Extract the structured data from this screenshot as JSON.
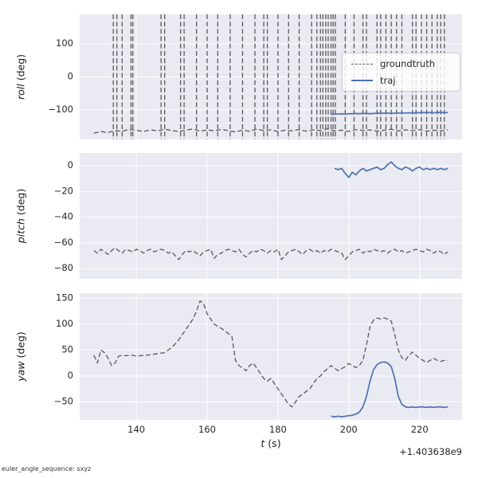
{
  "figure": {
    "background": "#ffffff",
    "axes_background": "#eaeaf2",
    "grid_color": "#ffffff",
    "tick_color": "#262626",
    "label_color": "#1a1a1a"
  },
  "footer": "euler_angle_sequence: sxyz",
  "legend": {
    "items": [
      {
        "label": "groundtruth",
        "style": "dashed",
        "color": "#595959"
      },
      {
        "label": "traj",
        "style": "solid",
        "color": "#4c72b0"
      }
    ]
  },
  "xaxis": {
    "label_var": "t",
    "label_unit": " (s)",
    "lim": [
      124,
      232
    ],
    "ticks": [
      140,
      160,
      180,
      200,
      220
    ],
    "offset_text": "+1.403638e9"
  },
  "chart_data": [
    {
      "type": "line",
      "ylabel_var": "roll",
      "ylabel_unit": " (deg)",
      "ylim": [
        -190,
        190
      ],
      "yticks": [
        -100,
        0,
        100
      ],
      "series": [
        {
          "name": "groundtruth",
          "style": "dashed",
          "color": "#595959",
          "t0": 128,
          "dt": 2,
          "values": [
            -171,
            -166,
            -169,
            -163,
            -165,
            -160,
            -162,
            -166,
            -161,
            -164,
            -159,
            -163,
            -166,
            -162,
            -158,
            -165,
            -161,
            -164,
            -160,
            -163,
            -167,
            -162,
            -165,
            -159,
            -163,
            -161,
            -166,
            -162,
            -164,
            -160,
            -165,
            -161,
            -163,
            -158,
            -164,
            -162,
            -166,
            -160,
            -163,
            -161,
            -165,
            -162,
            -159,
            -164,
            -161,
            -163,
            -160,
            -165,
            -162,
            -164,
            -161
          ],
          "wrap_lines_at": [
            133.5,
            134.5,
            136,
            138.5,
            139,
            147,
            148,
            152.5,
            153.5,
            157,
            160,
            163,
            166.5,
            170,
            173.5,
            176,
            177,
            180,
            183,
            186,
            189.5,
            191,
            192,
            192.7,
            193.5,
            194.2,
            195,
            195.6,
            196.2,
            199,
            201.5,
            204,
            205,
            208,
            209,
            210.5,
            212,
            213.5,
            215,
            218,
            219,
            220.5,
            222,
            223.5,
            225,
            226,
            227
          ]
        },
        {
          "name": "traj",
          "style": "solid",
          "color": "#4c72b0",
          "t0": 195,
          "dt": 1,
          "values": [
            -114,
            -113,
            -113,
            -112,
            -113,
            -112,
            -112,
            -111,
            -112,
            -111,
            -111,
            -112,
            -111,
            -110,
            -111,
            -110,
            -110,
            -111,
            -110,
            -110,
            -109,
            -110,
            -109,
            -110,
            -109,
            -109,
            -108,
            -109,
            -108,
            -109,
            -108,
            -108,
            -109,
            -108
          ]
        }
      ]
    },
    {
      "type": "line",
      "ylabel_var": "pitch",
      "ylabel_unit": " (deg)",
      "ylim": [
        -88,
        10
      ],
      "yticks": [
        -80,
        -60,
        -40,
        -20,
        0
      ],
      "series": [
        {
          "name": "groundtruth",
          "style": "dashed",
          "color": "#595959",
          "t0": 128,
          "dt": 1,
          "values": [
            -66,
            -68,
            -65,
            -67,
            -69,
            -66,
            -64,
            -66,
            -68,
            -65,
            -66,
            -67,
            -65,
            -66,
            -68,
            -66,
            -65,
            -67,
            -66,
            -65,
            -66,
            -68,
            -67,
            -70,
            -73,
            -69,
            -66,
            -67,
            -66,
            -68,
            -70,
            -67,
            -66,
            -65,
            -72,
            -69,
            -68,
            -66,
            -65,
            -66,
            -67,
            -65,
            -69,
            -71,
            -68,
            -66,
            -67,
            -65,
            -66,
            -68,
            -66,
            -67,
            -65,
            -73,
            -70,
            -67,
            -66,
            -65,
            -67,
            -69,
            -66,
            -65,
            -67,
            -66,
            -68,
            -66,
            -67,
            -65,
            -66,
            -67,
            -68,
            -73,
            -70,
            -67,
            -66,
            -65,
            -68,
            -66,
            -67,
            -65,
            -66,
            -67,
            -66,
            -68,
            -66,
            -65,
            -67,
            -66,
            -68,
            -67,
            -66,
            -65,
            -66,
            -67,
            -65,
            -66,
            -68,
            -66,
            -67,
            -69,
            -67
          ]
        },
        {
          "name": "traj",
          "style": "solid",
          "color": "#4c72b0",
          "t0": 196,
          "dt": 1,
          "values": [
            -2,
            -3,
            -2,
            -6,
            -9,
            -5,
            -7,
            -4,
            -2,
            -4,
            -3,
            -2,
            -1,
            -3,
            -2,
            1,
            3,
            0,
            -2,
            -3,
            -1,
            -2,
            -4,
            -2,
            -1,
            -3,
            -2,
            -3,
            -2,
            -3,
            -2,
            -3,
            -2
          ]
        }
      ]
    },
    {
      "type": "line",
      "ylabel_var": "yaw",
      "ylabel_unit": " (deg)",
      "ylim": [
        -85,
        160
      ],
      "yticks": [
        -50,
        0,
        50,
        100,
        150
      ],
      "series": [
        {
          "name": "groundtruth",
          "style": "dashed",
          "color": "#595959",
          "t0": 128,
          "dt": 1,
          "values": [
            40,
            25,
            50,
            45,
            35,
            20,
            25,
            38,
            40,
            39,
            40,
            40,
            38,
            39,
            40,
            40,
            41,
            42,
            43,
            44,
            45,
            50,
            55,
            62,
            70,
            80,
            90,
            100,
            110,
            125,
            145,
            140,
            120,
            110,
            100,
            96,
            92,
            87,
            82,
            76,
            30,
            20,
            15,
            10,
            20,
            25,
            15,
            5,
            -5,
            -10,
            -5,
            -15,
            -25,
            -35,
            -45,
            -55,
            -60,
            -50,
            -40,
            -35,
            -30,
            -25,
            -15,
            -5,
            0,
            8,
            14,
            20,
            15,
            10,
            14,
            18,
            24,
            20,
            16,
            20,
            30,
            60,
            95,
            108,
            112,
            110,
            112,
            110,
            106,
            80,
            50,
            35,
            30,
            40,
            46,
            40,
            34,
            30,
            26,
            30,
            34,
            30,
            28,
            30,
            30
          ]
        },
        {
          "name": "traj",
          "style": "solid",
          "color": "#4c72b0",
          "t0": 195,
          "dt": 1,
          "values": [
            -78,
            -79,
            -78,
            -79,
            -78,
            -77,
            -76,
            -74,
            -70,
            -60,
            -40,
            -10,
            12,
            22,
            26,
            27,
            25,
            18,
            -5,
            -40,
            -55,
            -60,
            -61,
            -60,
            -61,
            -60,
            -60,
            -61,
            -60,
            -61,
            -60,
            -60,
            -61,
            -60
          ]
        }
      ]
    }
  ]
}
